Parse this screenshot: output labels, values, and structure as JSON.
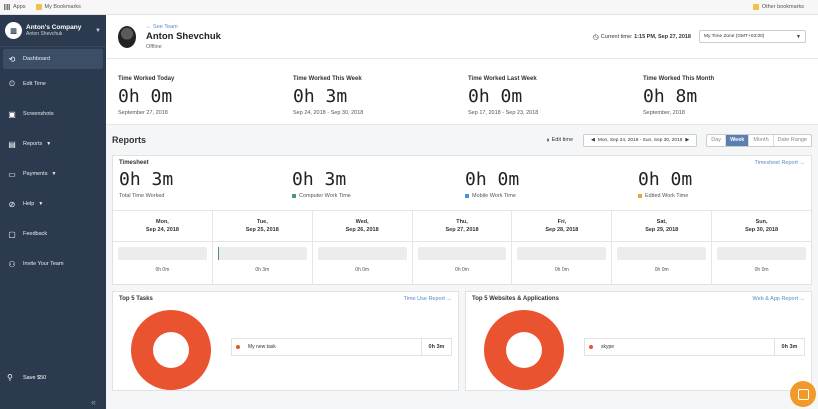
{
  "bookmarks": {
    "apps": "Apps",
    "my": "My Bookmarks",
    "other": "Other bookmarks"
  },
  "sidebar": {
    "company_name": "Anton's Company",
    "company_user": "Anton Shevchuk",
    "items": [
      {
        "label": "Dashboard",
        "icon": "clock-icon"
      },
      {
        "label": "Edit Time",
        "icon": "edit-time-icon"
      },
      {
        "label": "Screenshots",
        "icon": "image-icon"
      },
      {
        "label": "Reports",
        "icon": "report-icon"
      },
      {
        "label": "Payments",
        "icon": "card-icon"
      },
      {
        "label": "Help",
        "icon": "help-icon"
      },
      {
        "label": "Feedback",
        "icon": "chat-icon"
      },
      {
        "label": "Invite Your Team",
        "icon": "add-user-icon"
      }
    ],
    "save": "Save $50"
  },
  "header": {
    "see_team": "← See Team",
    "user_name": "Anton Shevchuk",
    "status": "Offline",
    "current_time_label": "Current time:",
    "current_time": "1:15 PM, Sep 27, 2018",
    "timezone": "My Time Zone (GMT+03:00)"
  },
  "stats": [
    {
      "label": "Time Worked Today",
      "value": "0h 0m",
      "sub": "September 27, 2018"
    },
    {
      "label": "Time Worked This Week",
      "value": "0h 3m",
      "sub": "Sep 24, 2018 - Sep 30, 2018"
    },
    {
      "label": "Time Worked Last Week",
      "value": "0h 0m",
      "sub": "Sep 17, 2018 - Sep 23, 2018"
    },
    {
      "label": "Time Worked This Month",
      "value": "0h 8m",
      "sub": "September, 2018"
    }
  ],
  "reports": {
    "title": "Reports",
    "edit_time": "Edit time",
    "range": "Mon, Sep 24, 2018 - Sun, Sep 30, 2018",
    "views": [
      "Day",
      "Week",
      "Month",
      "Date Range"
    ],
    "active_view": "Week"
  },
  "timesheet": {
    "title": "Timesheet",
    "link": "Timesheet Report →",
    "stats": [
      {
        "value": "0h 3m",
        "label": "Total Time Worked",
        "color": ""
      },
      {
        "value": "0h 3m",
        "label": "Computer Work Time",
        "color": "#4a9a6b"
      },
      {
        "value": "0h 0m",
        "label": "Mobile Work Time",
        "color": "#4a90d9"
      },
      {
        "value": "0h 0m",
        "label": "Edited Work Time",
        "color": "#f2a33a"
      }
    ],
    "days": [
      {
        "day": "Mon,",
        "date": "Sep 24, 2018",
        "total": "0h 0m",
        "fill": 0
      },
      {
        "day": "Tue,",
        "date": "Sep 25, 2018",
        "total": "0h 3m",
        "fill": 0.01
      },
      {
        "day": "Wed,",
        "date": "Sep 26, 2018",
        "total": "0h 0m",
        "fill": 0
      },
      {
        "day": "Thu,",
        "date": "Sep 27, 2018",
        "total": "0h 0m",
        "fill": 0
      },
      {
        "day": "Fri,",
        "date": "Sep 28, 2018",
        "total": "0h 0m",
        "fill": 0
      },
      {
        "day": "Sat,",
        "date": "Sep 29, 2018",
        "total": "0h 0m",
        "fill": 0
      },
      {
        "day": "Sun,",
        "date": "Sep 30, 2018",
        "total": "0h 0m",
        "fill": 0
      }
    ]
  },
  "tasks": {
    "title": "Top 5 Tasks",
    "link": "Time Use Report →",
    "item": "My new task",
    "value": "0h 3m"
  },
  "websites": {
    "title": "Top 5 Websites & Applications",
    "link": "Web & App Report →",
    "item": "skype",
    "value": "0h 3m"
  },
  "colors": {
    "sidebar": "#2b3a4f",
    "accent": "#5a7fb0",
    "donut": "#e9532f",
    "chat": "#f19a2a"
  }
}
